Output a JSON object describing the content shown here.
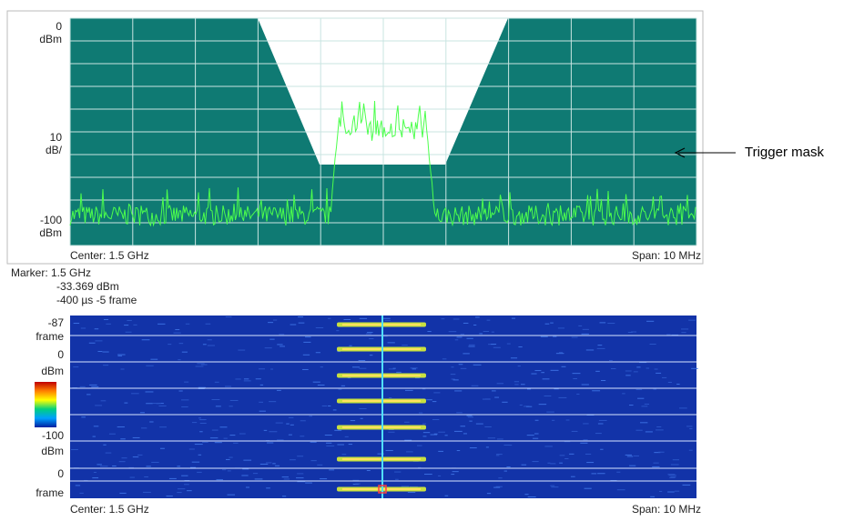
{
  "top_panel": {
    "y_labels": [
      "0",
      "dBm",
      "10",
      "dB/",
      "-100",
      "dBm"
    ],
    "center": "Center: 1.5 GHz",
    "span": "Span: 10 MHz"
  },
  "marker": {
    "frequency": "Marker: 1.5 GHz",
    "level": "-33.369 dBm",
    "time": "-400 µs  -5 frame"
  },
  "bottom_panel": {
    "y_labels": [
      "-87",
      "frame",
      "0",
      "dBm",
      "-100",
      "dBm",
      "0",
      "frame"
    ],
    "center": "Center: 1.5 GHz",
    "span": "Span: 10 MHz"
  },
  "annotation": "Trigger mask"
}
